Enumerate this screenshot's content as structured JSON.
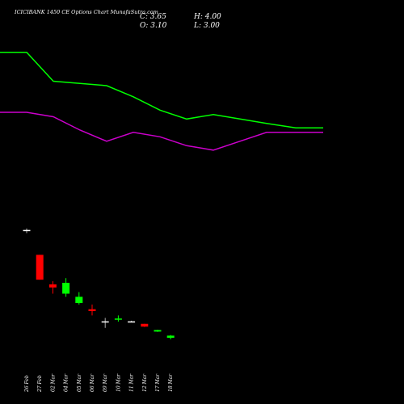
{
  "header": {
    "title": "ICICIBANK 1450 CE Options Chart MunafaSutra.com",
    "c_label": "C: 3.65",
    "h_label": "H: 4.00",
    "o_label": "O: 3.10",
    "l_label": "L: 3.00"
  },
  "colors": {
    "background": "#000000",
    "green_line": "#00ff00",
    "purple_line": "#cc00cc",
    "bull": "#00ff00",
    "bear": "#ff0000",
    "doji": "#ffffff"
  },
  "chart_data": {
    "type": "candlestick",
    "categories": [
      "26 Feb",
      "27 Feb",
      "02 Mar",
      "04 Mar",
      "05 Mar",
      "06 Mar",
      "09 Mar",
      "10 Mar",
      "11 Mar",
      "12 Mar",
      "17 Mar",
      "18 Mar"
    ],
    "candles": [
      {
        "date": "26 Feb",
        "open": 43.0,
        "high": 43.5,
        "low": 42.0,
        "close": 43.0
      },
      {
        "date": "27 Feb",
        "open": 35.0,
        "high": 35.0,
        "low": 27.0,
        "close": 27.0
      },
      {
        "date": "02 Mar",
        "open": 25.5,
        "high": 26.5,
        "low": 22.5,
        "close": 24.5
      },
      {
        "date": "04 Mar",
        "open": 22.5,
        "high": 27.5,
        "low": 21.5,
        "close": 26.0
      },
      {
        "date": "05 Mar",
        "open": 19.5,
        "high": 23.0,
        "low": 19.0,
        "close": 21.5
      },
      {
        "date": "06 Mar",
        "open": 17.5,
        "high": 19.0,
        "low": 15.5,
        "close": 16.9
      },
      {
        "date": "09 Mar",
        "open": 13.6,
        "high": 14.7,
        "low": 11.5,
        "close": 13.5
      },
      {
        "date": "10 Mar",
        "open": 14.2,
        "high": 15.5,
        "low": 13.5,
        "close": 14.5
      },
      {
        "date": "11 Mar",
        "open": 13.6,
        "high": 13.8,
        "low": 13.3,
        "close": 13.6
      },
      {
        "date": "12 Mar",
        "open": 12.8,
        "high": 12.8,
        "low": 11.8,
        "close": 11.9
      },
      {
        "date": "17 Mar",
        "open": 10.3,
        "high": 10.9,
        "low": 10.2,
        "close": 10.8
      },
      {
        "date": "18 Mar",
        "open": 8.3,
        "high": 9.2,
        "low": 7.8,
        "close": 9.0
      }
    ],
    "ylim": [
      0,
      52
    ],
    "line_series": [
      {
        "color": "#00ff00",
        "values": [
          71,
          71,
          58,
          57,
          56,
          51,
          45,
          41,
          43,
          41,
          39,
          37
        ]
      },
      {
        "color": "#cc00cc",
        "values": [
          44,
          44,
          42,
          36,
          31,
          35,
          33,
          29,
          27,
          31,
          35,
          35
        ]
      }
    ],
    "line_x": [
      "start",
      "26 Feb",
      "27 Feb",
      "02 Mar",
      "04 Mar",
      "05 Mar",
      "06 Mar",
      "09 Mar",
      "10 Mar",
      "11 Mar",
      "12 Mar",
      "17 Mar"
    ],
    "line_ylim": [
      0,
      80
    ],
    "grid": false,
    "xlabel": "",
    "ylabel": ""
  }
}
